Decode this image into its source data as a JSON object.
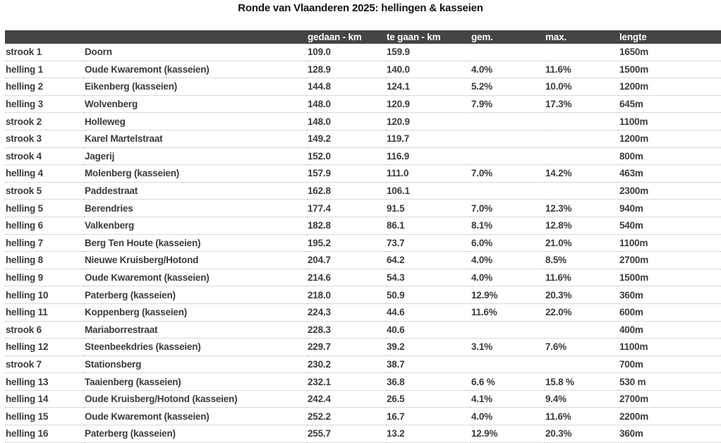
{
  "title": "Ronde van Vlaanderen 2025: hellingen & kasseien",
  "colors": {
    "header_bg": "#454545",
    "header_text": "#ffffff",
    "body_text": "#3b3b3b",
    "title_text": "#111111",
    "row_divider": "#b4b4b4"
  },
  "chart_data": {
    "type": "table",
    "title": "Ronde van Vlaanderen 2025: hellingen & kasseien",
    "columns": [
      "",
      "",
      "gedaan - km",
      "te gaan - km",
      "gem.",
      "max.",
      "lengte"
    ],
    "rows": [
      [
        "strook 1",
        "Doorn",
        "109.0",
        "159.9",
        "",
        "",
        "1650m"
      ],
      [
        "helling 1",
        "Oude Kwaremont (kasseien)",
        "128.9",
        "140.0",
        "4.0%",
        "11.6%",
        "1500m"
      ],
      [
        "helling 2",
        "Eikenberg (kasseien)",
        "144.8",
        "124.1",
        "5.2%",
        "10.0%",
        "1200m"
      ],
      [
        "helling 3",
        "Wolvenberg",
        "148.0",
        "120.9",
        "7.9%",
        "17.3%",
        "645m"
      ],
      [
        "strook 2",
        "Holleweg",
        "148.0",
        "120.9",
        "",
        "",
        "1100m"
      ],
      [
        "strook 3",
        "Karel Martelstraat",
        "149.2",
        "119.7",
        "",
        "",
        "1200m"
      ],
      [
        "strook 4",
        "Jagerij",
        "152.0",
        "116.9",
        "",
        "",
        "800m"
      ],
      [
        "helling 4",
        "Molenberg (kasseien)",
        "157.9",
        "111.0",
        "7.0%",
        "14.2%",
        "463m"
      ],
      [
        "strook 5",
        "Paddestraat",
        "162.8",
        "106.1",
        "",
        "",
        "2300m"
      ],
      [
        "helling 5",
        "Berendries",
        "177.4",
        "91.5",
        "7.0%",
        "12.3%",
        "940m"
      ],
      [
        "helling 6",
        "Valkenberg",
        "182.8",
        "86.1",
        "8.1%",
        "12.8%",
        "540m"
      ],
      [
        "helling 7",
        "Berg Ten Houte (kasseien)",
        "195.2",
        "73.7",
        "6.0%",
        "21.0%",
        "1100m"
      ],
      [
        "helling 8",
        "Nieuwe Kruisberg/Hotond",
        "204.7",
        "64.2",
        "4.0%",
        "8.5%",
        "2700m"
      ],
      [
        "helling 9",
        "Oude Kwaremont (kasseien)",
        "214.6",
        "54.3",
        "4.0%",
        "11.6%",
        "1500m"
      ],
      [
        "helling 10",
        "Paterberg (kasseien)",
        "218.0",
        "50.9",
        "12.9%",
        "20.3%",
        "360m"
      ],
      [
        "helling 11",
        "Koppenberg (kasseien)",
        "224.3",
        "44.6",
        "11.6%",
        "22.0%",
        "600m"
      ],
      [
        "strook 6",
        "Mariaborrestraat",
        "228.3",
        "40.6",
        "",
        "",
        "400m"
      ],
      [
        "helling 12",
        "Steenbeekdries (kasseien)",
        "229.7",
        "39.2",
        "3.1%",
        "7.6%",
        "1100m"
      ],
      [
        "strook 7",
        "Stationsberg",
        "230.2",
        "38.7",
        "",
        "",
        "700m"
      ],
      [
        "helling 13",
        "Taaienberg (kasseien)",
        "232.1",
        "36.8",
        "6.6 %",
        "15.8 %",
        "530 m"
      ],
      [
        "helling 14",
        "Oude Kruisberg/Hotond (kasseien)",
        "242.4",
        "26.5",
        "4.1%",
        "9.4%",
        "2700m"
      ],
      [
        "helling 15",
        "Oude Kwaremont (kasseien)",
        "252.2",
        "16.7",
        "4.0%",
        "11.6%",
        "2200m"
      ],
      [
        "helling 16",
        "Paterberg (kasseien)",
        "255.7",
        "13.2",
        "12.9%",
        "20.3%",
        "360m"
      ]
    ]
  }
}
